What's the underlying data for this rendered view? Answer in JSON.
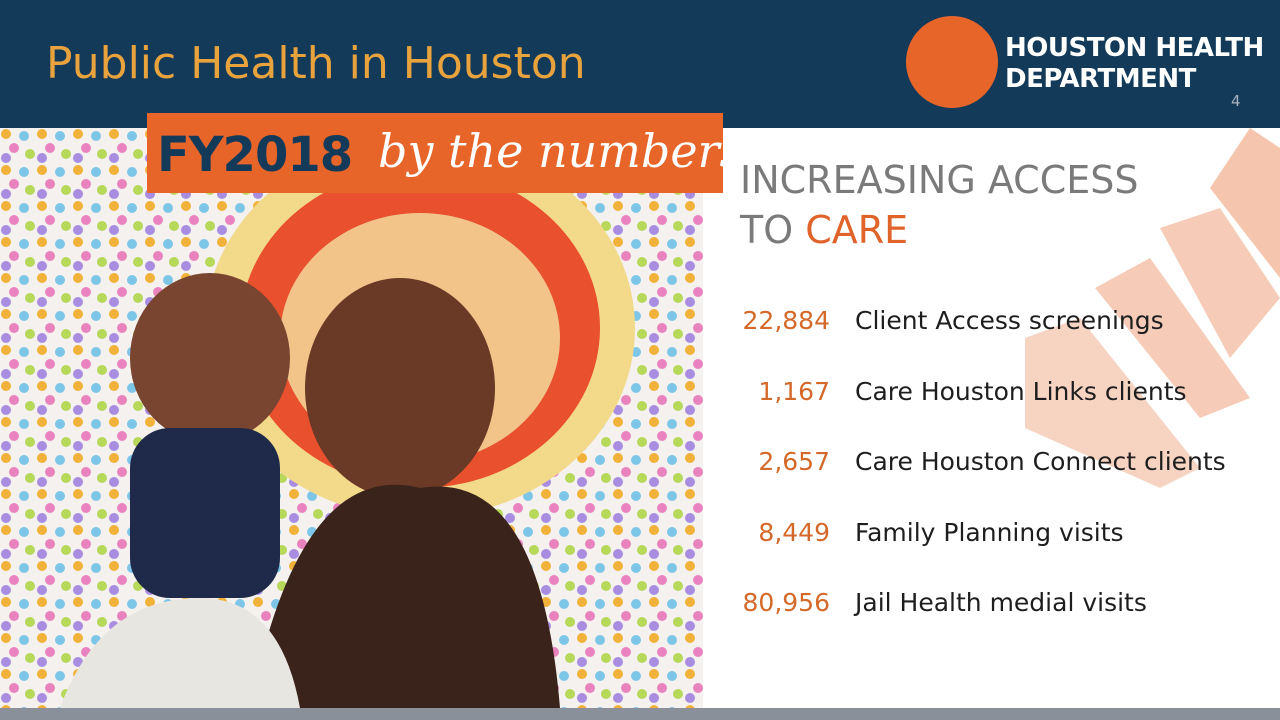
{
  "header": {
    "title": "Public Health in Houston",
    "page_number": 4
  },
  "logo": {
    "line1": "HOUSTON HEALTH",
    "line2": "DEPARTMENT"
  },
  "banner": {
    "bold": "FY2018",
    "script": "by the numbers"
  },
  "heading": {
    "line1": "INCREASING ACCESS",
    "line2_prefix": "TO",
    "line2_highlight": "CARE"
  },
  "stats": [
    {
      "value": "22,884",
      "label": "Client Access screenings"
    },
    {
      "value": "1,167",
      "label": "Care Houston Links clients"
    },
    {
      "value": "2,657",
      "label": "Care Houston Connect clients"
    },
    {
      "value": "8,449",
      "label": "Family Planning visits"
    },
    {
      "value": "80,956",
      "label": "Jail Health medial visits"
    }
  ]
}
